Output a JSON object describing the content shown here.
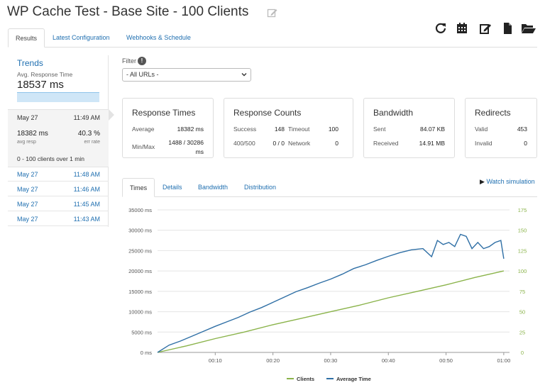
{
  "page_title": "WP Cache Test - Base Site - 100 Clients",
  "top_tabs": [
    "Results",
    "Latest Configuration",
    "Webhooks & Schedule"
  ],
  "toolbar_icons": [
    "refresh-icon",
    "calendar-icon",
    "edit-icon",
    "document-icon",
    "folder-open-icon"
  ],
  "trends": {
    "title": "Trends",
    "avg_label": "Avg. Response Time",
    "avg_value": "18537 ms"
  },
  "selected_run": {
    "date": "May 27",
    "time": "11:49 AM",
    "avg_resp": "18382 ms",
    "avg_resp_label": "avg resp",
    "err_rate": "40.3 %",
    "err_rate_label": "err rate",
    "range_text": "0  -  100 clients over 1 min"
  },
  "runs": [
    {
      "date": "May 27",
      "time": "11:48 AM"
    },
    {
      "date": "May 27",
      "time": "11:46 AM"
    },
    {
      "date": "May 27",
      "time": "11:45 AM"
    },
    {
      "date": "May 27",
      "time": "11:43 AM"
    }
  ],
  "filter": {
    "label": "Filter",
    "value": "- All URLs -"
  },
  "cards": {
    "response_times": {
      "title": "Response Times",
      "average_label": "Average",
      "average_value": "18382 ms",
      "minmax_label": "Min/Max",
      "minmax_value_1": "1488 / 30286",
      "minmax_value_2": "ms"
    },
    "response_counts": {
      "title": "Response Counts",
      "success_label": "Success",
      "success_value": "148",
      "timeout_label": "Timeout",
      "timeout_value": "100",
      "err_label": "400/500",
      "err_value": "0 / 0",
      "network_label": "Network",
      "network_value": "0"
    },
    "bandwidth": {
      "title": "Bandwidth",
      "sent_label": "Sent",
      "sent_value": "84.07 KB",
      "received_label": "Received",
      "received_value": "14.91 MB"
    },
    "redirects": {
      "title": "Redirects",
      "valid_label": "Valid",
      "valid_value": "453",
      "invalid_label": "Invalid",
      "invalid_value": "0"
    }
  },
  "bottom_tabs": [
    "Times",
    "Details",
    "Bandwidth",
    "Distribution"
  ],
  "watch_simulation": "Watch simulation",
  "colors": {
    "link": "#1f6fb0",
    "clients": "#8ab34a",
    "avg_time": "#2f6fa5"
  },
  "chart_data": {
    "type": "line",
    "x_ticks": [
      "00:10",
      "00:20",
      "00:30",
      "00:40",
      "00:50",
      "01:00"
    ],
    "y_left_ticks": [
      "0 ms",
      "5000 ms",
      "10000 ms",
      "15000 ms",
      "20000 ms",
      "25000 ms",
      "30000 ms",
      "35000 ms"
    ],
    "y_right_ticks": [
      "0",
      "25",
      "50",
      "75",
      "100",
      "125",
      "150",
      "175"
    ],
    "ylim_left": [
      0,
      35000
    ],
    "ylim_right": [
      0,
      175
    ],
    "xlim": [
      0,
      61
    ],
    "grid": true,
    "legend": "bottom",
    "series": [
      {
        "name": "Clients",
        "axis": "right",
        "color": "#8ab34a",
        "x": [
          0,
          5,
          10,
          15,
          20,
          25,
          30,
          35,
          40,
          45,
          50,
          55,
          60
        ],
        "y": [
          0,
          8,
          17,
          25,
          34,
          42,
          50,
          58,
          67,
          75,
          83,
          92,
          100
        ]
      },
      {
        "name": "Average Time",
        "axis": "left",
        "color": "#2f6fa5",
        "x": [
          0,
          2,
          4,
          6,
          8,
          10,
          12,
          14,
          16,
          18,
          20,
          22,
          24,
          26,
          28,
          30,
          32,
          34,
          36,
          38,
          40,
          42,
          44,
          46,
          47.5,
          48.5,
          49.5,
          50.5,
          51.5,
          52.5,
          53.5,
          54.5,
          55.5,
          56.5,
          57.5,
          58.5,
          59.5,
          60
        ],
        "y": [
          0,
          1800,
          2800,
          4000,
          5200,
          6400,
          7500,
          8600,
          9900,
          11000,
          12300,
          13600,
          14900,
          15900,
          17000,
          18000,
          19200,
          20600,
          21500,
          22600,
          23600,
          24500,
          25200,
          25500,
          23500,
          27500,
          26500,
          27000,
          26000,
          29000,
          28500,
          25500,
          27000,
          25500,
          26000,
          27000,
          27500,
          23000
        ]
      }
    ]
  }
}
